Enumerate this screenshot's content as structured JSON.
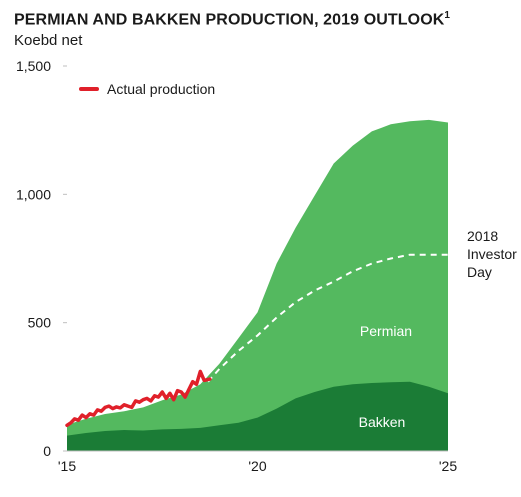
{
  "header": {
    "title": "PERMIAN AND BAKKEN PRODUCTION, 2019 OUTLOOK",
    "title_footnote": "1",
    "subtitle": "Koebd net"
  },
  "colors": {
    "permian": "#54b95f",
    "bakken": "#1b7c36",
    "actual": "#e0202a",
    "dashed": "#ffffff"
  },
  "chart_data": {
    "type": "area",
    "title": "PERMIAN AND BAKKEN PRODUCTION, 2019 OUTLOOK",
    "ylabel": "Koebd net",
    "xlim": [
      2015,
      2025
    ],
    "ylim": [
      0,
      1500
    ],
    "x_ticks": [
      2015,
      2020,
      2025
    ],
    "x_tick_labels": [
      "'15",
      "'20",
      "'25"
    ],
    "y_ticks": [
      0,
      500,
      1000,
      1500
    ],
    "y_tick_labels": [
      "0",
      "500",
      "1,000",
      "1,500"
    ],
    "grid": false,
    "legend_position": "top-left",
    "series": [
      {
        "name": "Bakken",
        "kind": "stacked-area",
        "x": [
          2015,
          2015.5,
          2016,
          2016.5,
          2017,
          2017.5,
          2018,
          2018.5,
          2019,
          2019.5,
          2020,
          2020.5,
          2021,
          2021.5,
          2022,
          2022.5,
          2023,
          2023.5,
          2024,
          2024.5,
          2025
        ],
        "values": [
          60,
          70,
          78,
          82,
          80,
          84,
          86,
          90,
          100,
          110,
          130,
          165,
          205,
          230,
          250,
          260,
          265,
          268,
          270,
          250,
          225
        ]
      },
      {
        "name": "Permian",
        "kind": "stacked-area",
        "x": [
          2015,
          2015.5,
          2016,
          2016.5,
          2017,
          2017.5,
          2018,
          2018.5,
          2019,
          2019.5,
          2020,
          2020.5,
          2021,
          2021.5,
          2022,
          2022.5,
          2023,
          2023.5,
          2024,
          2024.5,
          2025
        ],
        "values": [
          42,
          56,
          66,
          73,
          90,
          114,
          134,
          170,
          240,
          330,
          410,
          565,
          665,
          765,
          870,
          930,
          980,
          1005,
          1015,
          1040,
          1055
        ]
      },
      {
        "name": "2018 Investor Day",
        "kind": "dashed-line",
        "x": [
          2018.7,
          2019,
          2019.5,
          2020,
          2020.5,
          2021,
          2021.5,
          2022,
          2022.5,
          2023,
          2023.5,
          2024,
          2024.5,
          2025
        ],
        "values": [
          270,
          320,
          390,
          450,
          520,
          580,
          625,
          660,
          700,
          730,
          750,
          765,
          765,
          765
        ]
      },
      {
        "name": "Actual production",
        "kind": "line",
        "x": [
          2015,
          2015.1,
          2015.2,
          2015.3,
          2015.4,
          2015.5,
          2015.6,
          2015.7,
          2015.8,
          2015.9,
          2016,
          2016.1,
          2016.2,
          2016.3,
          2016.4,
          2016.5,
          2016.6,
          2016.7,
          2016.8,
          2016.9,
          2017,
          2017.1,
          2017.2,
          2017.3,
          2017.4,
          2017.5,
          2017.6,
          2017.7,
          2017.8,
          2017.9,
          2018,
          2018.1,
          2018.2,
          2018.3,
          2018.4,
          2018.5,
          2018.6,
          2018.75
        ],
        "values": [
          100,
          110,
          125,
          120,
          140,
          130,
          145,
          140,
          160,
          155,
          170,
          175,
          165,
          172,
          168,
          180,
          175,
          170,
          195,
          190,
          200,
          205,
          195,
          215,
          210,
          230,
          205,
          225,
          200,
          235,
          230,
          210,
          240,
          270,
          260,
          310,
          275,
          280
        ]
      }
    ],
    "labels": {
      "legend_actual": "Actual production",
      "permian": "Permian",
      "bakken": "Bakken",
      "investor_day": [
        "2018",
        "Investor",
        "Day"
      ]
    }
  }
}
